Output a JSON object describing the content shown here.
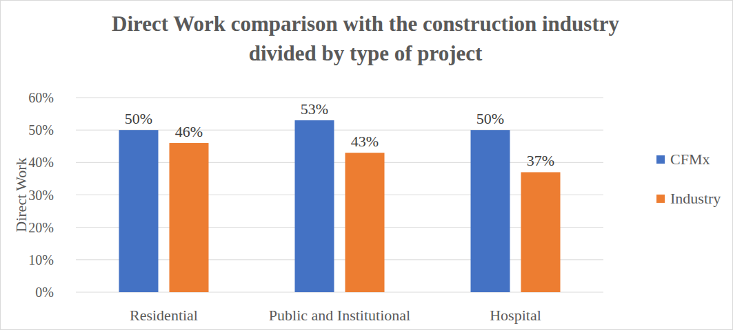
{
  "chart_data": {
    "type": "bar",
    "title": "Direct Work comparison with the construction industry divided by type of project",
    "y_label": "Direct Work",
    "categories": [
      "Residential",
      "Public and Institutional",
      "Hospital"
    ],
    "series": [
      {
        "name": "CFMx",
        "color": "#4472c4",
        "values": [
          50,
          53,
          50
        ],
        "value_labels": [
          "50%",
          "53%",
          "50%"
        ]
      },
      {
        "name": "Industry",
        "color": "#ed7d31",
        "values": [
          46,
          43,
          37
        ],
        "value_labels": [
          "46%",
          "43%",
          "37%"
        ]
      }
    ],
    "ylim": [
      0,
      60
    ],
    "yticks": [
      {
        "value": 0,
        "label": "0%"
      },
      {
        "value": 10,
        "label": "10%"
      },
      {
        "value": 20,
        "label": "20%"
      },
      {
        "value": 30,
        "label": "30%"
      },
      {
        "value": 40,
        "label": "40%"
      },
      {
        "value": 50,
        "label": "50%"
      },
      {
        "value": 60,
        "label": "60%"
      }
    ],
    "grid": true,
    "legend": "right",
    "data_labels": true
  }
}
